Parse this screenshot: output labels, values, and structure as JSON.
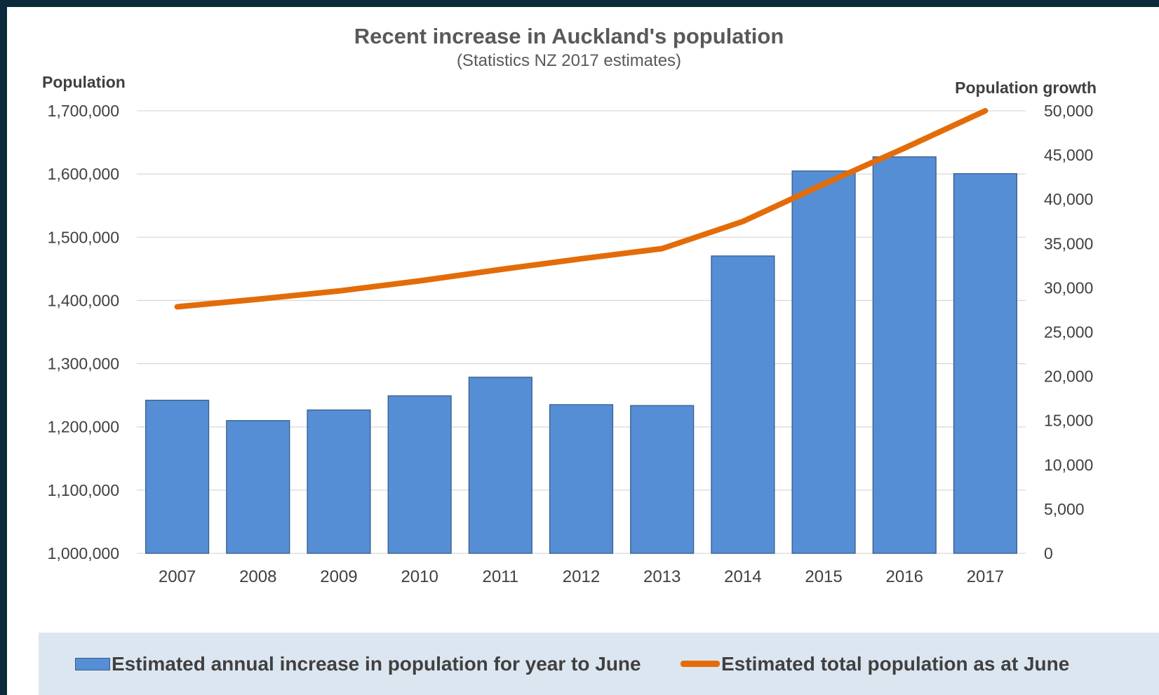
{
  "chart_data": {
    "type": "bar",
    "title": "Recent increase in Auckland's population",
    "subtitle": "(Statistics NZ 2017 estimates)",
    "left_axis_title": "Population",
    "right_axis_title": "Population growth",
    "categories": [
      "2007",
      "2008",
      "2009",
      "2010",
      "2011",
      "2012",
      "2013",
      "2014",
      "2015",
      "2016",
      "2017"
    ],
    "left_ticks": [
      "1,700,000",
      "1,600,000",
      "1,500,000",
      "1,400,000",
      "1,300,000",
      "1,200,000",
      "1,100,000",
      "1,000,000"
    ],
    "right_ticks": [
      "50,000",
      "45,000",
      "40,000",
      "35,000",
      "30,000",
      "25,000",
      "20,000",
      "15,000",
      "10,000",
      "5,000",
      "0"
    ],
    "left_ylim": [
      1000000,
      1700000
    ],
    "right_ylim": [
      0,
      50000
    ],
    "grid": true,
    "legend_position": "bottom",
    "series": [
      {
        "name": "Estimated annual increase in population for year to June",
        "type": "bar",
        "axis": "right",
        "color": "#558ed5",
        "values": [
          17300,
          15000,
          16200,
          17800,
          19900,
          16800,
          16700,
          33600,
          43200,
          44800,
          42900
        ]
      },
      {
        "name": "Estimated total population as at June",
        "type": "line",
        "axis": "left",
        "color": "#e36c09",
        "values": [
          1390000,
          1402000,
          1415000,
          1431000,
          1449000,
          1466000,
          1482000,
          1525000,
          1584000,
          1641000,
          1700000
        ]
      }
    ]
  }
}
